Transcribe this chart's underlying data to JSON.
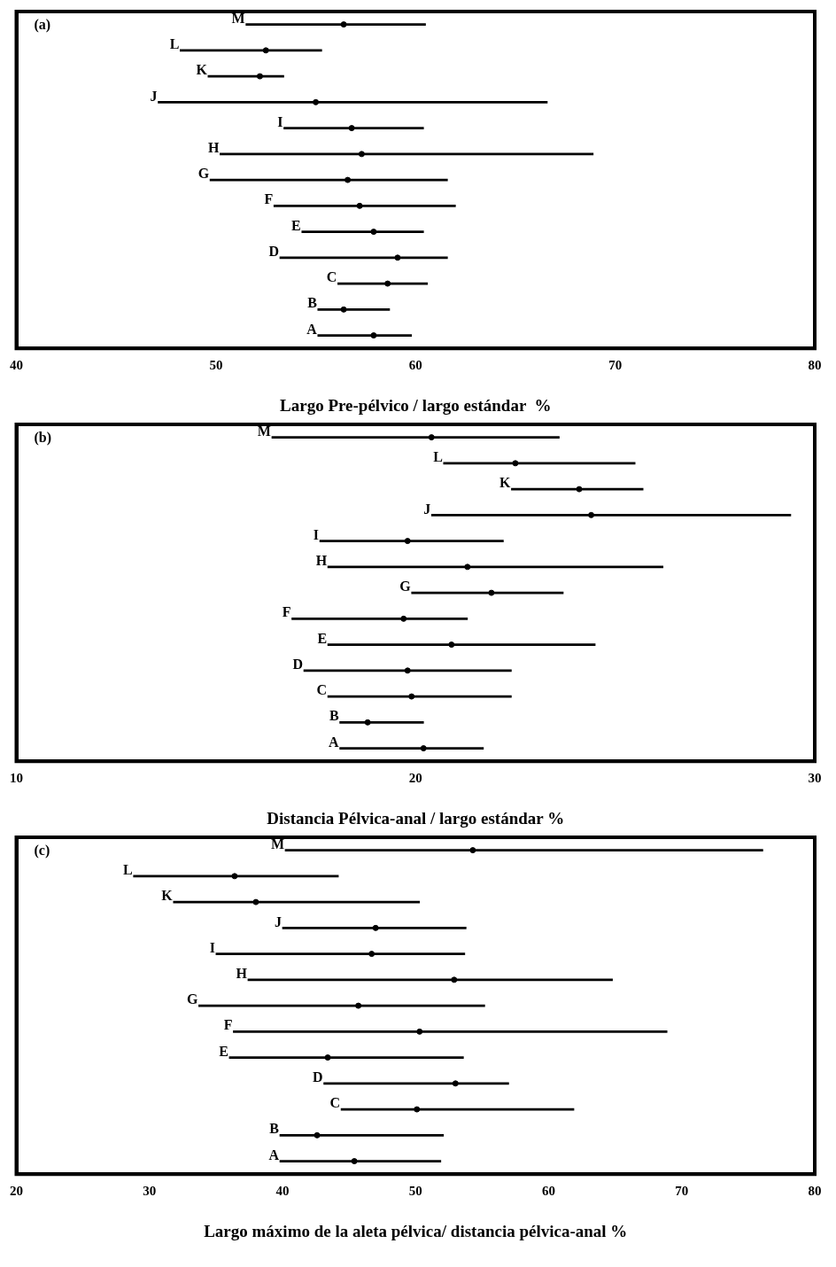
{
  "chart_data": [
    {
      "type": "bar",
      "orientation": "horizontal",
      "categories": [
        "M",
        "L",
        "K",
        "J",
        "I",
        "H",
        "G",
        "F",
        "E",
        "D",
        "C",
        "B",
        "A"
      ],
      "xlabel": "Largo Pre-pélvico / largo estándar  %",
      "annotations": [
        "(a)"
      ],
      "xlim": [
        40,
        80
      ],
      "xticks": [
        40,
        50,
        60,
        70,
        80
      ],
      "tick_labels": "x",
      "grid": false,
      "legend": false,
      "series": [
        {
          "color": "#000000",
          "base": [
            51.5,
            48.2,
            49.6,
            47.1,
            53.4,
            50.2,
            49.7,
            52.9,
            54.3,
            53.2,
            56.1,
            55.1,
            55.1
          ],
          "values": [
            9.0,
            7.1,
            3.8,
            19.5,
            7.0,
            18.7,
            11.9,
            9.1,
            6.1,
            8.4,
            4.5,
            3.6,
            4.7
          ]
        },
        {
          "type": "scatter",
          "color": "#000000",
          "values": [
            56.4,
            52.5,
            52.2,
            55.0,
            56.8,
            57.3,
            56.6,
            57.2,
            57.9,
            59.1,
            58.6,
            56.4,
            57.9
          ]
        }
      ]
    },
    {
      "type": "bar",
      "orientation": "horizontal",
      "categories": [
        "M",
        "L",
        "K",
        "J",
        "I",
        "H",
        "G",
        "F",
        "E",
        "D",
        "C",
        "B",
        "A"
      ],
      "xlabel": "Distancia Pélvica-anal / largo estándar %",
      "annotations": [
        "(b)"
      ],
      "xlim": [
        10,
        30
      ],
      "xticks": [
        10,
        20,
        30
      ],
      "tick_labels": "x",
      "grid": false,
      "legend": false,
      "series": [
        {
          "color": "#000000",
          "base": [
            16.4,
            20.7,
            22.4,
            20.4,
            17.6,
            17.8,
            19.9,
            16.9,
            17.8,
            17.2,
            17.8,
            18.1,
            18.1
          ],
          "values": [
            7.2,
            4.8,
            3.3,
            9.0,
            4.6,
            8.4,
            3.8,
            4.4,
            6.7,
            5.2,
            4.6,
            2.1,
            3.6
          ]
        },
        {
          "type": "scatter",
          "color": "#000000",
          "values": [
            20.4,
            22.5,
            24.1,
            24.4,
            19.8,
            21.3,
            21.9,
            19.7,
            20.9,
            19.8,
            19.9,
            18.8,
            20.2
          ]
        }
      ]
    },
    {
      "type": "bar",
      "orientation": "horizontal",
      "categories": [
        "M",
        "L",
        "K",
        "J",
        "I",
        "H",
        "G",
        "F",
        "E",
        "D",
        "C",
        "B",
        "A"
      ],
      "xlabel": "Largo máximo de la aleta pélvica/ distancia pélvica-anal %",
      "annotations": [
        "(c)"
      ],
      "xlim": [
        20,
        80
      ],
      "xticks": [
        20,
        30,
        40,
        50,
        60,
        70,
        80
      ],
      "tick_labels": "x",
      "grid": false,
      "legend": false,
      "series": [
        {
          "color": "#000000",
          "base": [
            40.2,
            28.8,
            31.8,
            40.0,
            35.0,
            37.4,
            33.7,
            36.3,
            36.0,
            43.1,
            44.4,
            39.8,
            39.8
          ],
          "values": [
            35.9,
            15.4,
            18.5,
            13.8,
            18.7,
            27.4,
            21.5,
            32.6,
            17.6,
            13.9,
            17.5,
            12.3,
            12.1
          ]
        },
        {
          "type": "scatter",
          "color": "#000000",
          "values": [
            54.3,
            36.4,
            38.0,
            47.0,
            46.7,
            52.9,
            45.7,
            50.3,
            43.4,
            53.0,
            50.1,
            42.6,
            45.4
          ]
        }
      ]
    }
  ]
}
